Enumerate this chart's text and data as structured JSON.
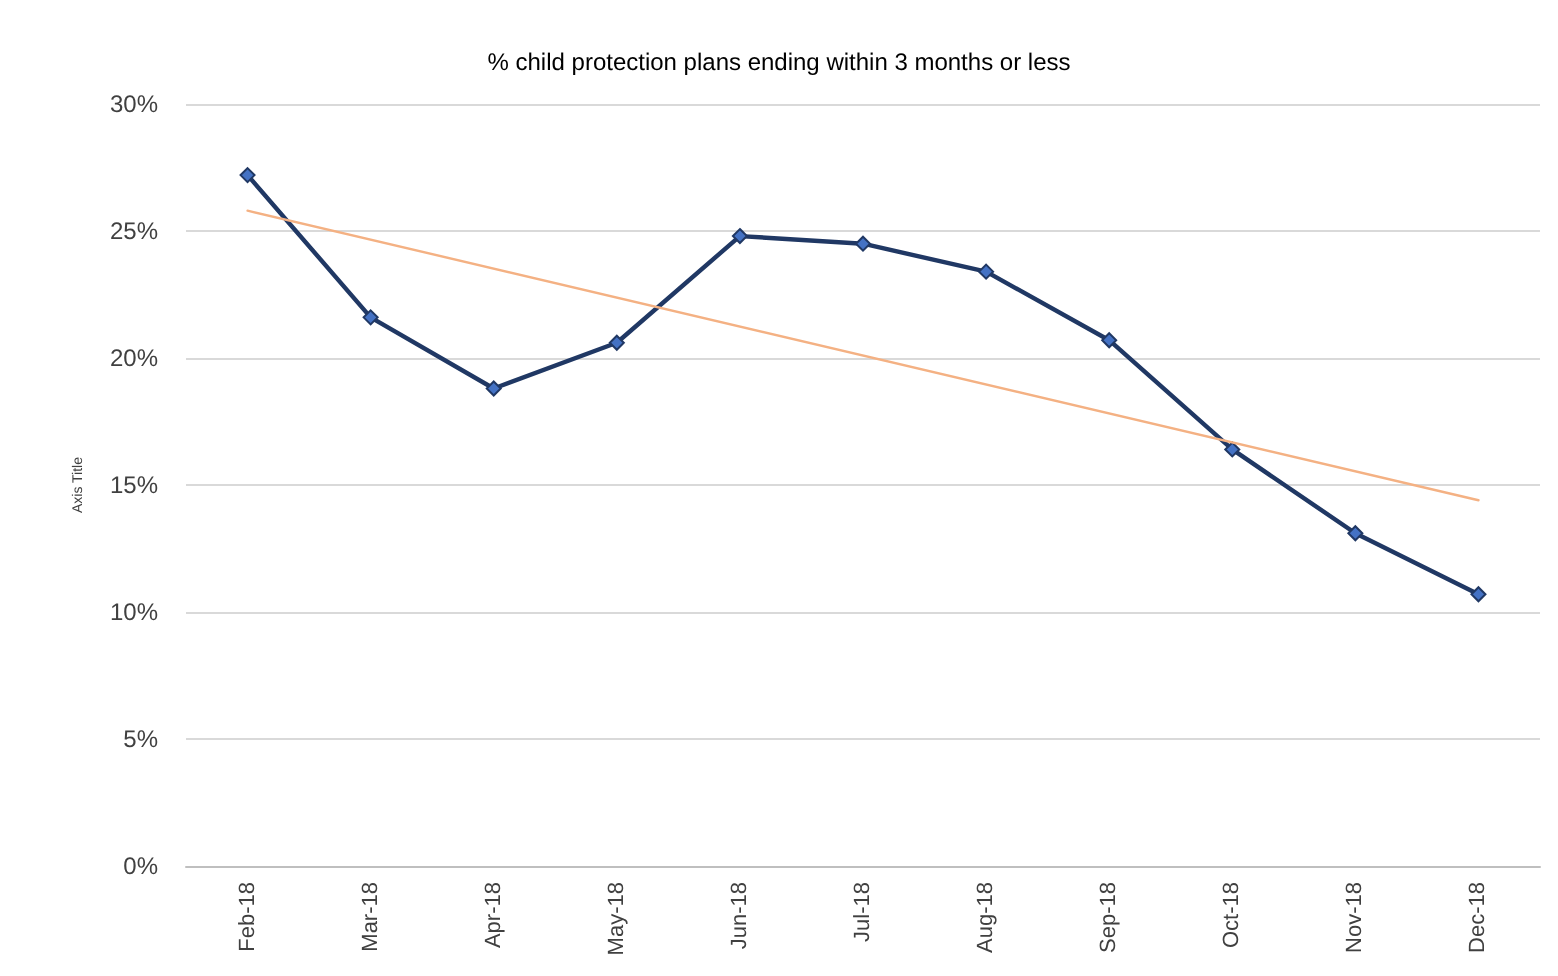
{
  "chart_data": {
    "type": "line",
    "title": "% child protection plans ending within 3 months or less",
    "ylabel": "Axis Title",
    "categories": [
      "Feb-18",
      "Mar-18",
      "Apr-18",
      "May-18",
      "Jun-18",
      "Jul-18",
      "Aug-18",
      "Sep-18",
      "Oct-18",
      "Nov-18",
      "Dec-18"
    ],
    "series": [
      {
        "color": "#203864",
        "values": [
          27.2,
          21.6,
          18.8,
          20.6,
          24.8,
          24.5,
          23.4,
          20.7,
          16.4,
          13.1,
          10.7
        ]
      },
      {
        "type": "line",
        "color": "#f4b183",
        "marker": "none",
        "x": [
          "Feb-18",
          "Dec-18"
        ],
        "values": [
          25.8,
          14.4
        ]
      }
    ],
    "ylim": [
      0,
      30
    ],
    "yticks": [
      {
        "value": 0,
        "label": "0%"
      },
      {
        "value": 5,
        "label": "5%"
      },
      {
        "value": 10,
        "label": "10%"
      },
      {
        "value": 15,
        "label": "15%"
      },
      {
        "value": 20,
        "label": "20%"
      },
      {
        "value": 25,
        "label": "25%"
      },
      {
        "value": 30,
        "label": "30%"
      }
    ],
    "grid": "y",
    "marker": "diamond"
  }
}
